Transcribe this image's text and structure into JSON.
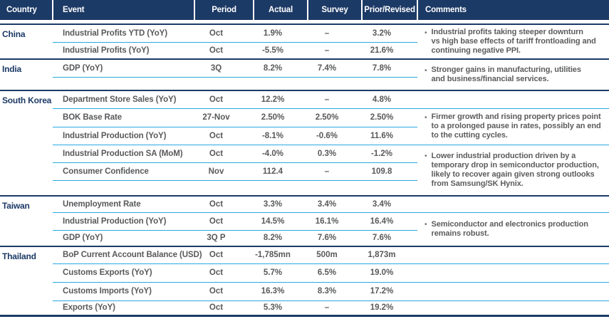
{
  "header": {
    "columns": [
      "Country",
      "Event",
      "Period",
      "Actual",
      "Survey",
      "Prior/Revised",
      "Comments"
    ]
  },
  "colors": {
    "navy": "#1c3a66",
    "cyan_rule": "#29a9e1",
    "text_gray": "#58595b",
    "header_text": "#ffffff"
  },
  "groups": [
    {
      "country": "China",
      "rows": [
        {
          "event": "Industrial Profits YTD (YoY)",
          "period": "Oct",
          "actual": "1.9%",
          "survey": "–",
          "prior": "3.2%"
        },
        {
          "event": "Industrial Profits (YoY)",
          "period": "Oct",
          "actual": "-5.5%",
          "survey": "–",
          "prior": "21.6%"
        }
      ],
      "comments": [
        "Industrial profits taking steeper downturn\nvs high base effects of tariff frontloading and\ncontinuing negative PPI."
      ]
    },
    {
      "country": "India",
      "rows": [
        {
          "event": "GDP (YoY)",
          "period": "3Q",
          "actual": "8.2%",
          "survey": "7.4%",
          "prior": "7.8%"
        }
      ],
      "comments": [
        "Stronger gains in manufacturing, utilities\nand business/financial services."
      ]
    },
    {
      "country": "South Korea",
      "rows": [
        {
          "event": "Department Store Sales (YoY)",
          "period": "Oct",
          "actual": "12.2%",
          "survey": "–",
          "prior": "4.8%"
        },
        {
          "event": "BOK Base Rate",
          "period": "27-Nov",
          "actual": "2.50%",
          "survey": "2.50%",
          "prior": "2.50%"
        },
        {
          "event": "Industrial Production (YoY)",
          "period": "Oct",
          "actual": "-8.1%",
          "survey": "-0.6%",
          "prior": "11.6%"
        },
        {
          "event": "Industrial Production SA (MoM)",
          "period": "Oct",
          "actual": "-4.0%",
          "survey": "0.3%",
          "prior": "-1.2%"
        },
        {
          "event": "Consumer Confidence",
          "period": "Nov",
          "actual": "112.4",
          "survey": "–",
          "prior": "109.8"
        }
      ],
      "comments": [
        "Firmer growth and rising property prices point\nto a prolonged pause in rates, possibly an end\nto the cutting cycles.",
        "Lower industrial production driven by a\ntemporary drop in semiconductor production,\nlikely to recover again given strong outlooks\nfrom Samsung/SK Hynix."
      ]
    },
    {
      "country": "Taiwan",
      "rows": [
        {
          "event": "Unemployment Rate",
          "period": "Oct",
          "actual": "3.3%",
          "survey": "3.4%",
          "prior": "3.4%"
        },
        {
          "event": "Industrial Production (YoY)",
          "period": "Oct",
          "actual": "14.5%",
          "survey": "16.1%",
          "prior": "16.4%"
        },
        {
          "event": "GDP (YoY)",
          "period": "3Q P",
          "actual": "8.2%",
          "survey": "7.6%",
          "prior": "7.6%"
        }
      ],
      "comments": [
        "Semiconductor and electronics production\nremains robust."
      ]
    },
    {
      "country": "Thailand",
      "rows": [
        {
          "event": "BoP Current Account Balance (USD)",
          "period": "Oct",
          "actual": "-1,785mn",
          "survey": "500m",
          "prior": "1,873m"
        },
        {
          "event": "Customs Exports (YoY)",
          "period": "Oct",
          "actual": "5.7%",
          "survey": "6.5%",
          "prior": "19.0%"
        },
        {
          "event": "Customs Imports (YoY)",
          "period": "Oct",
          "actual": "16.3%",
          "survey": "8.3%",
          "prior": "17.2%"
        },
        {
          "event": "Exports (YoY)",
          "period": "Oct",
          "actual": "5.3%",
          "survey": "–",
          "prior": "19.2%"
        }
      ],
      "comments": []
    }
  ],
  "bullet_glyph": "•"
}
